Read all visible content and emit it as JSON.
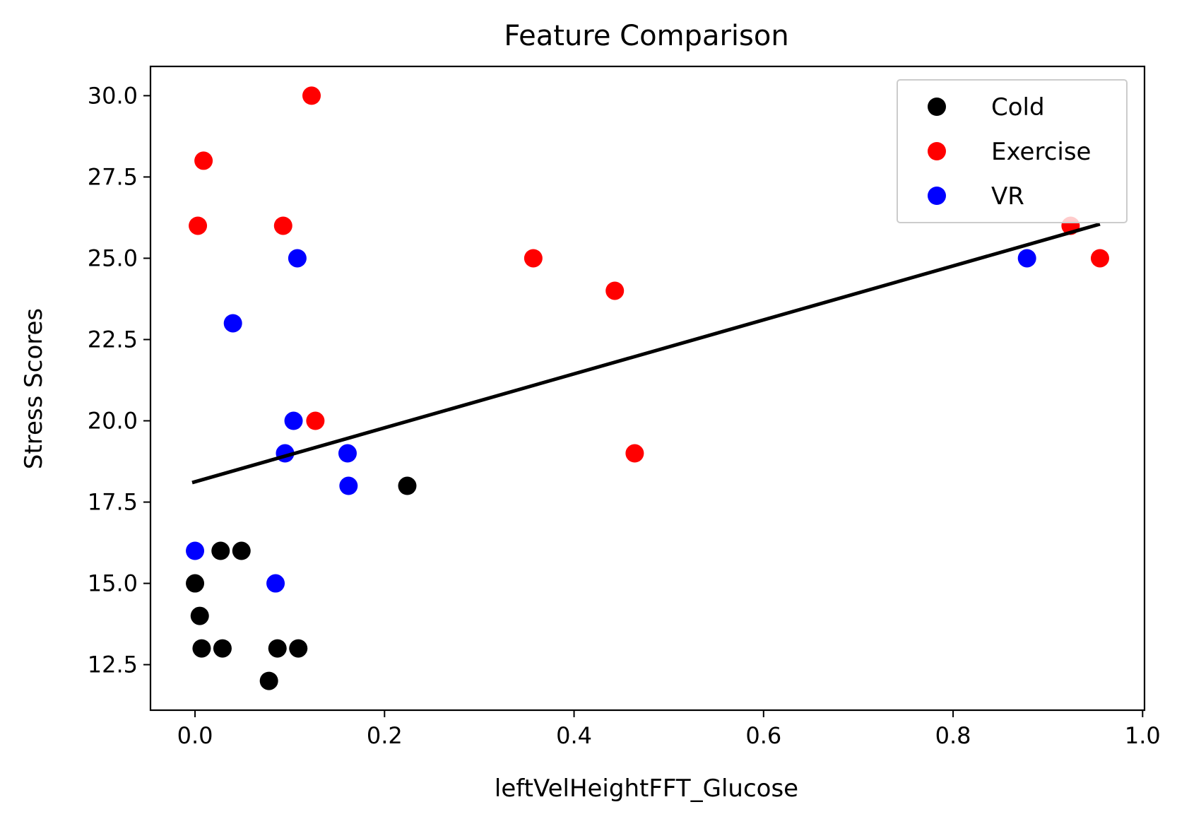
{
  "chart_data": {
    "type": "scatter",
    "title": "Feature Comparison",
    "xlabel": "leftVelHeightFFT_Glucose",
    "ylabel": "Stress Scores",
    "xlim": [
      -0.047,
      1.002
    ],
    "ylim": [
      11.1,
      30.9
    ],
    "xticks": [
      0.0,
      0.2,
      0.4,
      0.6,
      0.8,
      1.0
    ],
    "xtick_labels": [
      "0.0",
      "0.2",
      "0.4",
      "0.6",
      "0.8",
      "1.0"
    ],
    "yticks": [
      12.5,
      15.0,
      17.5,
      20.0,
      22.5,
      25.0,
      27.5,
      30.0
    ],
    "ytick_labels": [
      "12.5",
      "15.0",
      "17.5",
      "20.0",
      "22.5",
      "25.0",
      "27.5",
      "30.0"
    ],
    "grid": false,
    "legend_position": "top-right",
    "series": [
      {
        "name": "Cold",
        "color": "#000000",
        "points": [
          [
            0.0,
            15
          ],
          [
            0.005,
            14
          ],
          [
            0.007,
            13
          ],
          [
            0.027,
            16
          ],
          [
            0.029,
            13
          ],
          [
            0.049,
            16
          ],
          [
            0.078,
            12
          ],
          [
            0.087,
            13
          ],
          [
            0.109,
            13
          ],
          [
            0.224,
            18
          ]
        ]
      },
      {
        "name": "Exercise",
        "color": "#ff0000",
        "points": [
          [
            0.003,
            26
          ],
          [
            0.009,
            28
          ],
          [
            0.093,
            26
          ],
          [
            0.123,
            30
          ],
          [
            0.127,
            20
          ],
          [
            0.357,
            25
          ],
          [
            0.443,
            24
          ],
          [
            0.464,
            19
          ],
          [
            0.924,
            26
          ],
          [
            0.955,
            25
          ]
        ]
      },
      {
        "name": "VR",
        "color": "#0000ff",
        "points": [
          [
            0.0,
            16
          ],
          [
            0.04,
            23
          ],
          [
            0.085,
            15
          ],
          [
            0.095,
            19
          ],
          [
            0.104,
            20
          ],
          [
            0.108,
            25
          ],
          [
            0.161,
            19
          ],
          [
            0.162,
            18
          ],
          [
            0.878,
            25
          ]
        ]
      }
    ],
    "fit_line": {
      "color": "#000000",
      "points": [
        [
          -0.003,
          18.1
        ],
        [
          0.955,
          26.05
        ]
      ]
    }
  }
}
